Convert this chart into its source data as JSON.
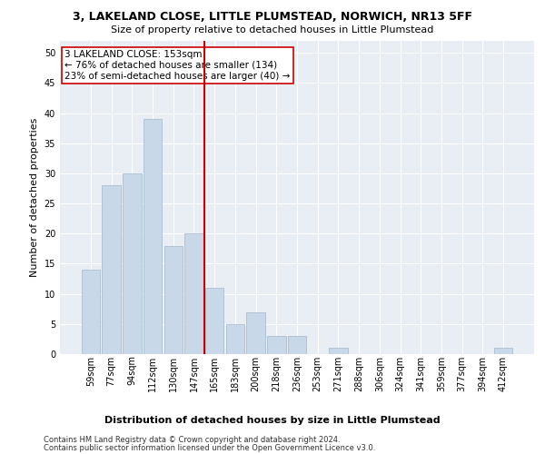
{
  "title1": "3, LAKELAND CLOSE, LITTLE PLUMSTEAD, NORWICH, NR13 5FF",
  "title2": "Size of property relative to detached houses in Little Plumstead",
  "xlabel": "Distribution of detached houses by size in Little Plumstead",
  "ylabel": "Number of detached properties",
  "categories": [
    "59sqm",
    "77sqm",
    "94sqm",
    "112sqm",
    "130sqm",
    "147sqm",
    "165sqm",
    "183sqm",
    "200sqm",
    "218sqm",
    "236sqm",
    "253sqm",
    "271sqm",
    "288sqm",
    "306sqm",
    "324sqm",
    "341sqm",
    "359sqm",
    "377sqm",
    "394sqm",
    "412sqm"
  ],
  "values": [
    14,
    28,
    30,
    39,
    18,
    20,
    11,
    5,
    7,
    3,
    3,
    0,
    1,
    0,
    0,
    0,
    0,
    0,
    0,
    0,
    1
  ],
  "bar_color": "#c8d8e8",
  "bar_edgecolor": "#a0b8cc",
  "vline_x": 5.5,
  "vline_color": "#cc0000",
  "annotation_text": "3 LAKELAND CLOSE: 153sqm\n← 76% of detached houses are smaller (134)\n23% of semi-detached houses are larger (40) →",
  "annotation_box_color": "#ffffff",
  "annotation_box_edgecolor": "#cc0000",
  "ylim": [
    0,
    52
  ],
  "yticks": [
    0,
    5,
    10,
    15,
    20,
    25,
    30,
    35,
    40,
    45,
    50
  ],
  "bg_color": "#e8eef4",
  "footer1": "Contains HM Land Registry data © Crown copyright and database right 2024.",
  "footer2": "Contains public sector information licensed under the Open Government Licence v3.0.",
  "title1_fontsize": 9,
  "title2_fontsize": 8,
  "xlabel_fontsize": 8,
  "ylabel_fontsize": 8,
  "annotation_fontsize": 7.5,
  "tick_fontsize": 7,
  "footer_fontsize": 6
}
